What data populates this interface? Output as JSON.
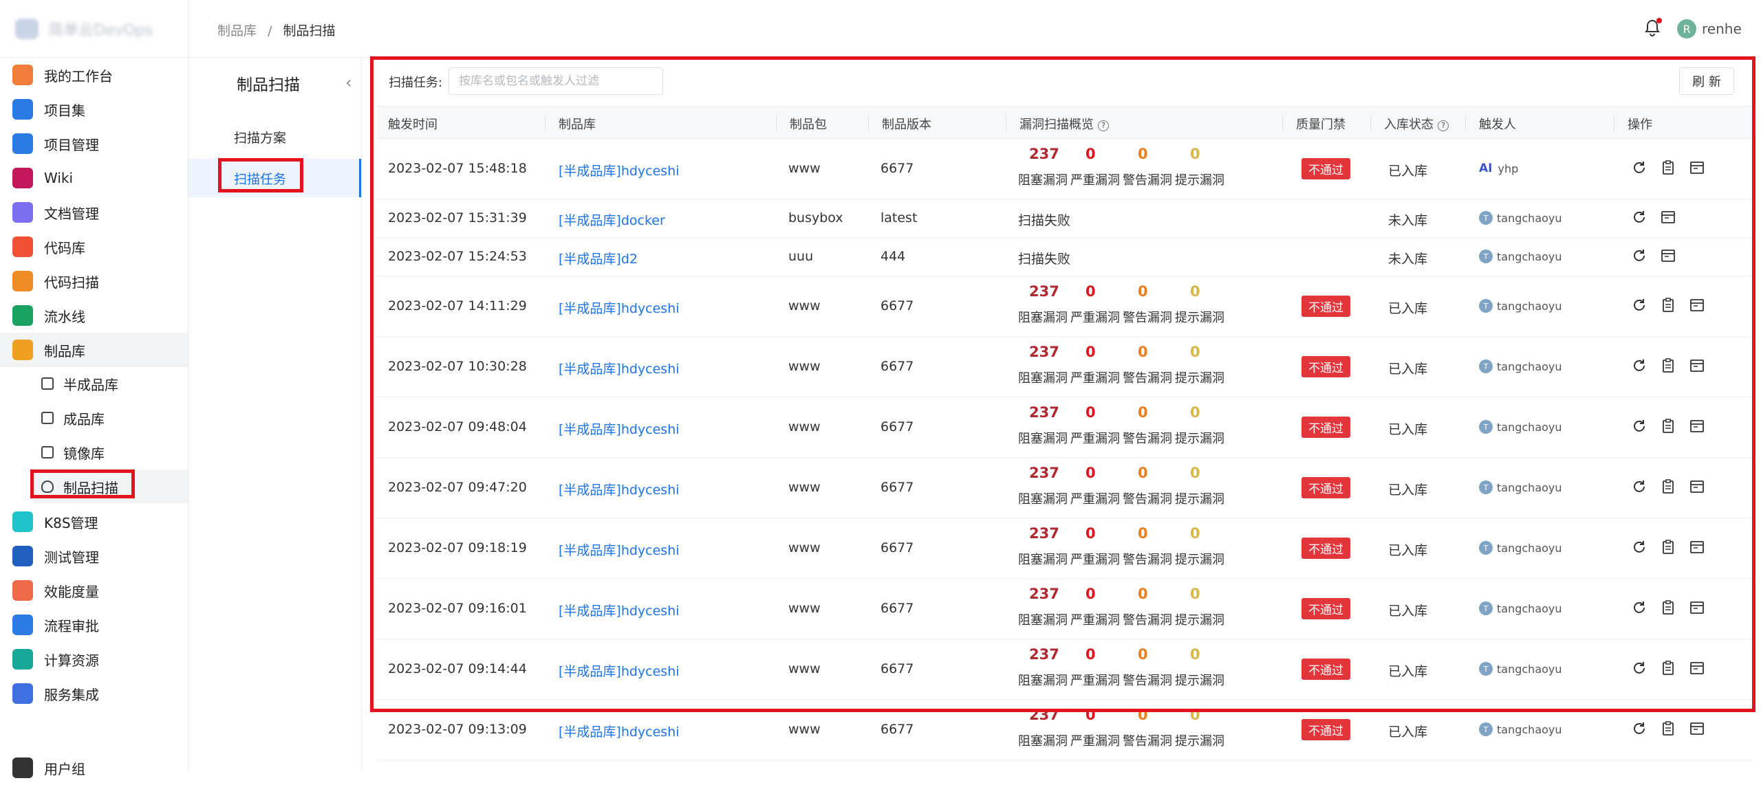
{
  "brand": {
    "name": "简单云DevOps"
  },
  "topbar": {
    "breadcrumb": [
      "制品库",
      "制品扫描"
    ],
    "breadcrumb_sep": "/",
    "user": {
      "initial": "R",
      "name": "renhe"
    }
  },
  "sidebar": {
    "items": [
      {
        "label": "我的工作台",
        "icon": "workbench-icon",
        "color": "#f07d3a"
      },
      {
        "label": "项目集",
        "icon": "project-set-icon",
        "color": "#2c7be5"
      },
      {
        "label": "项目管理",
        "icon": "project-management-icon",
        "color": "#2c7be5"
      },
      {
        "label": "Wiki",
        "icon": "wiki-icon",
        "color": "#c2185b"
      },
      {
        "label": "文档管理",
        "icon": "folder-icon",
        "color": "#7b6ff0"
      },
      {
        "label": "代码库",
        "icon": "git-icon",
        "color": "#f05033"
      },
      {
        "label": "代码扫描",
        "icon": "scan-globe-icon",
        "color": "#f08a24"
      },
      {
        "label": "流水线",
        "icon": "pipeline-icon",
        "color": "#1aa260"
      },
      {
        "label": "制品库",
        "icon": "artifact-icon",
        "color": "#f0a020"
      },
      {
        "label": "K8S管理",
        "icon": "k8s-helm-icon",
        "color": "#1ec4c9"
      },
      {
        "label": "测试管理",
        "icon": "flask-icon",
        "color": "#1e5fbf"
      },
      {
        "label": "效能度量",
        "icon": "chart-icon",
        "color": "#f06a4a"
      },
      {
        "label": "流程审批",
        "icon": "flow-icon",
        "color": "#2c7be5"
      },
      {
        "label": "计算资源",
        "icon": "compute-icon",
        "color": "#18a89a"
      },
      {
        "label": "服务集成",
        "icon": "chip-icon",
        "color": "#3f6fe0"
      },
      {
        "label": "用户组",
        "icon": "user-group-icon",
        "color": "#333333"
      }
    ],
    "sub_items": [
      {
        "label": "半成品库"
      },
      {
        "label": "成品库"
      },
      {
        "label": "镜像库"
      },
      {
        "label": "制品扫描"
      }
    ]
  },
  "submenu": {
    "title": "制品扫描",
    "items": [
      {
        "label": "扫描方案"
      },
      {
        "label": "扫描任务"
      }
    ]
  },
  "filter": {
    "label": "扫描任务:",
    "placeholder": "按库名或包名或触发人过滤",
    "value": ""
  },
  "refresh_label": "刷 新",
  "table": {
    "columns": [
      "触发时间",
      "制品库",
      "制品包",
      "制品版本",
      "漏洞扫描概览",
      "质量门禁",
      "入库状态",
      "触发人",
      "操作"
    ],
    "vuln_labels": [
      "阻塞漏洞",
      "严重漏洞",
      "警告漏洞",
      "提示漏洞"
    ],
    "vuln_colors": [
      "#b0272d",
      "#e3141e",
      "#f07d1a",
      "#d9b64a"
    ],
    "rows": [
      {
        "time": "2023-02-07 15:48:18",
        "repo": "[半成品库]hdyceshi",
        "pkg": "www",
        "ver": "6677",
        "vulns": [
          "237",
          "0",
          "0",
          "0"
        ],
        "failed": "",
        "gate": "不通过",
        "status": "已入库",
        "trigger": "yhp",
        "ai": "AI"
      },
      {
        "time": "2023-02-07 15:31:39",
        "repo": "[半成品库]docker",
        "pkg": "busybox",
        "ver": "latest",
        "vulns": null,
        "failed": "扫描失败",
        "gate": "",
        "status": "未入库",
        "trigger": "tangchaoyu",
        "ai": ""
      },
      {
        "time": "2023-02-07 15:24:53",
        "repo": "[半成品库]d2",
        "pkg": "uuu",
        "ver": "444",
        "vulns": null,
        "failed": "扫描失败",
        "gate": "",
        "status": "未入库",
        "trigger": "tangchaoyu",
        "ai": ""
      },
      {
        "time": "2023-02-07 14:11:29",
        "repo": "[半成品库]hdyceshi",
        "pkg": "www",
        "ver": "6677",
        "vulns": [
          "237",
          "0",
          "0",
          "0"
        ],
        "failed": "",
        "gate": "不通过",
        "status": "已入库",
        "trigger": "tangchaoyu",
        "ai": ""
      },
      {
        "time": "2023-02-07 10:30:28",
        "repo": "[半成品库]hdyceshi",
        "pkg": "www",
        "ver": "6677",
        "vulns": [
          "237",
          "0",
          "0",
          "0"
        ],
        "failed": "",
        "gate": "不通过",
        "status": "已入库",
        "trigger": "tangchaoyu",
        "ai": ""
      },
      {
        "time": "2023-02-07 09:48:04",
        "repo": "[半成品库]hdyceshi",
        "pkg": "www",
        "ver": "6677",
        "vulns": [
          "237",
          "0",
          "0",
          "0"
        ],
        "failed": "",
        "gate": "不通过",
        "status": "已入库",
        "trigger": "tangchaoyu",
        "ai": ""
      },
      {
        "time": "2023-02-07 09:47:20",
        "repo": "[半成品库]hdyceshi",
        "pkg": "www",
        "ver": "6677",
        "vulns": [
          "237",
          "0",
          "0",
          "0"
        ],
        "failed": "",
        "gate": "不通过",
        "status": "已入库",
        "trigger": "tangchaoyu",
        "ai": ""
      },
      {
        "time": "2023-02-07 09:18:19",
        "repo": "[半成品库]hdyceshi",
        "pkg": "www",
        "ver": "6677",
        "vulns": [
          "237",
          "0",
          "0",
          "0"
        ],
        "failed": "",
        "gate": "不通过",
        "status": "已入库",
        "trigger": "tangchaoyu",
        "ai": ""
      },
      {
        "time": "2023-02-07 09:16:01",
        "repo": "[半成品库]hdyceshi",
        "pkg": "www",
        "ver": "6677",
        "vulns": [
          "237",
          "0",
          "0",
          "0"
        ],
        "failed": "",
        "gate": "不通过",
        "status": "已入库",
        "trigger": "tangchaoyu",
        "ai": ""
      },
      {
        "time": "2023-02-07 09:14:44",
        "repo": "[半成品库]hdyceshi",
        "pkg": "www",
        "ver": "6677",
        "vulns": [
          "237",
          "0",
          "0",
          "0"
        ],
        "failed": "",
        "gate": "不通过",
        "status": "已入库",
        "trigger": "tangchaoyu",
        "ai": ""
      },
      {
        "time": "2023-02-07 09:13:09",
        "repo": "[半成品库]hdyceshi",
        "pkg": "www",
        "ver": "6677",
        "vulns": [
          "237",
          "0",
          "0",
          "0"
        ],
        "failed": "",
        "gate": "不通过",
        "status": "已入库",
        "trigger": "tangchaoyu",
        "ai": ""
      }
    ]
  },
  "theme": {
    "highlight_red": "#e3141e",
    "link_blue": "#1d74ea"
  }
}
